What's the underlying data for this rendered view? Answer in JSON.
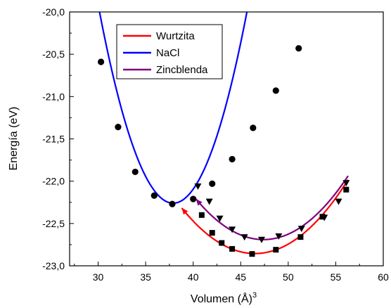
{
  "chart_data": {
    "type": "scatter",
    "xlabel": "Volumen (Å)",
    "xlabel_sup": "3",
    "ylabel": "Energía (eV)",
    "xlim": [
      27,
      60
    ],
    "ylim": [
      -23.0,
      -20.0
    ],
    "x_ticks": [
      30,
      35,
      40,
      45,
      50,
      55,
      60
    ],
    "x_tick_labels": [
      "30",
      "35",
      "40",
      "45",
      "50",
      "55",
      "60"
    ],
    "y_ticks": [
      -20.0,
      -20.5,
      -21.0,
      -21.5,
      -22.0,
      -22.5,
      -23.0
    ],
    "y_tick_labels": [
      "-20,0",
      "-20,5",
      "-21,0",
      "-21,5",
      "-22,0",
      "-22,5",
      "-23,0"
    ],
    "legend_position": "top-left",
    "series": [
      {
        "name": "Wurtzita",
        "color": "#ff0000",
        "marker": "square",
        "points": [
          [
            40.9,
            -22.4
          ],
          [
            42.0,
            -22.61
          ],
          [
            43.0,
            -22.73
          ],
          [
            44.1,
            -22.8
          ],
          [
            46.2,
            -22.86
          ],
          [
            48.7,
            -22.81
          ],
          [
            51.3,
            -22.66
          ],
          [
            53.6,
            -22.42
          ],
          [
            56.1,
            -22.1
          ]
        ],
        "fit_range": [
          38.8,
          56.3
        ],
        "fit_coeffs": [
          -22.855,
          46.5,
          0.00908
        ],
        "fit_start_arrow": true
      },
      {
        "name": "NaCl",
        "color": "#0000ff",
        "marker": "circle",
        "points": [
          [
            30.3,
            -20.59
          ],
          [
            32.1,
            -21.36
          ],
          [
            33.9,
            -21.89
          ],
          [
            35.9,
            -22.17
          ],
          [
            37.8,
            -22.27
          ],
          [
            40.0,
            -22.21
          ],
          [
            42.0,
            -22.03
          ],
          [
            44.1,
            -21.74
          ],
          [
            46.3,
            -21.37
          ],
          [
            48.7,
            -20.93
          ],
          [
            51.1,
            -20.43
          ]
        ],
        "fit_range": [
          29.8,
          51.3
        ],
        "fit_coeffs": [
          -22.26,
          37.9,
          0.0376
        ],
        "fit_start_arrow": false
      },
      {
        "name": "Zincblenda",
        "color": "#800080",
        "marker": "triangle-down",
        "points": [
          [
            40.5,
            -22.06
          ],
          [
            41.7,
            -22.24
          ],
          [
            42.8,
            -22.44
          ],
          [
            44.1,
            -22.57
          ],
          [
            45.4,
            -22.66
          ],
          [
            47.2,
            -22.69
          ],
          [
            49.0,
            -22.65
          ],
          [
            51.4,
            -22.56
          ],
          [
            53.8,
            -22.43
          ],
          [
            55.3,
            -22.24
          ],
          [
            56.1,
            -22.02
          ]
        ],
        "fit_range": [
          40.3,
          56.3
        ],
        "fit_coeffs": [
          -22.69,
          47.4,
          0.0095
        ],
        "fit_start_arrow": true
      }
    ]
  }
}
